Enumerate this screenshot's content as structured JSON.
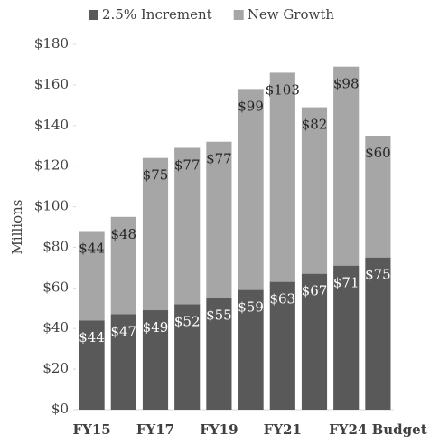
{
  "chart_data": {
    "type": "stacked_bar",
    "y_label": "Millions",
    "categories": [
      "FY15",
      null,
      "FY17",
      null,
      "FY19",
      null,
      "FY21",
      null,
      null,
      "FY24 Budget"
    ],
    "series": [
      {
        "name": "2.5% Increment",
        "color": "#595959",
        "values": [
          44,
          47,
          49,
          52,
          55,
          59,
          63,
          67,
          71,
          75
        ],
        "value_labels": [
          "$44",
          "$47",
          "$49",
          "$52",
          "$55",
          "$59",
          "$63",
          "$67",
          "$71",
          "$75"
        ]
      },
      {
        "name": "New Growth",
        "color": "#a6a6a6",
        "values": [
          44,
          48,
          75,
          77,
          77,
          99,
          103,
          82,
          98,
          60
        ],
        "value_labels": [
          "$44",
          "$48",
          "$75",
          "$77",
          "$77",
          "$99",
          "$103",
          "$82",
          "$98",
          "$60"
        ]
      }
    ],
    "ylim": [
      0,
      180
    ],
    "yticks": [
      {
        "value": 0,
        "label": "$0"
      },
      {
        "value": 20,
        "label": "$20"
      },
      {
        "value": 40,
        "label": "$40"
      },
      {
        "value": 60,
        "label": "$60"
      },
      {
        "value": 80,
        "label": "$80"
      },
      {
        "value": 100,
        "label": "$100"
      },
      {
        "value": 120,
        "label": "$120"
      },
      {
        "value": 140,
        "label": "$140"
      },
      {
        "value": 160,
        "label": "$160"
      },
      {
        "value": 180,
        "label": "$180"
      }
    ],
    "legend": "top"
  }
}
